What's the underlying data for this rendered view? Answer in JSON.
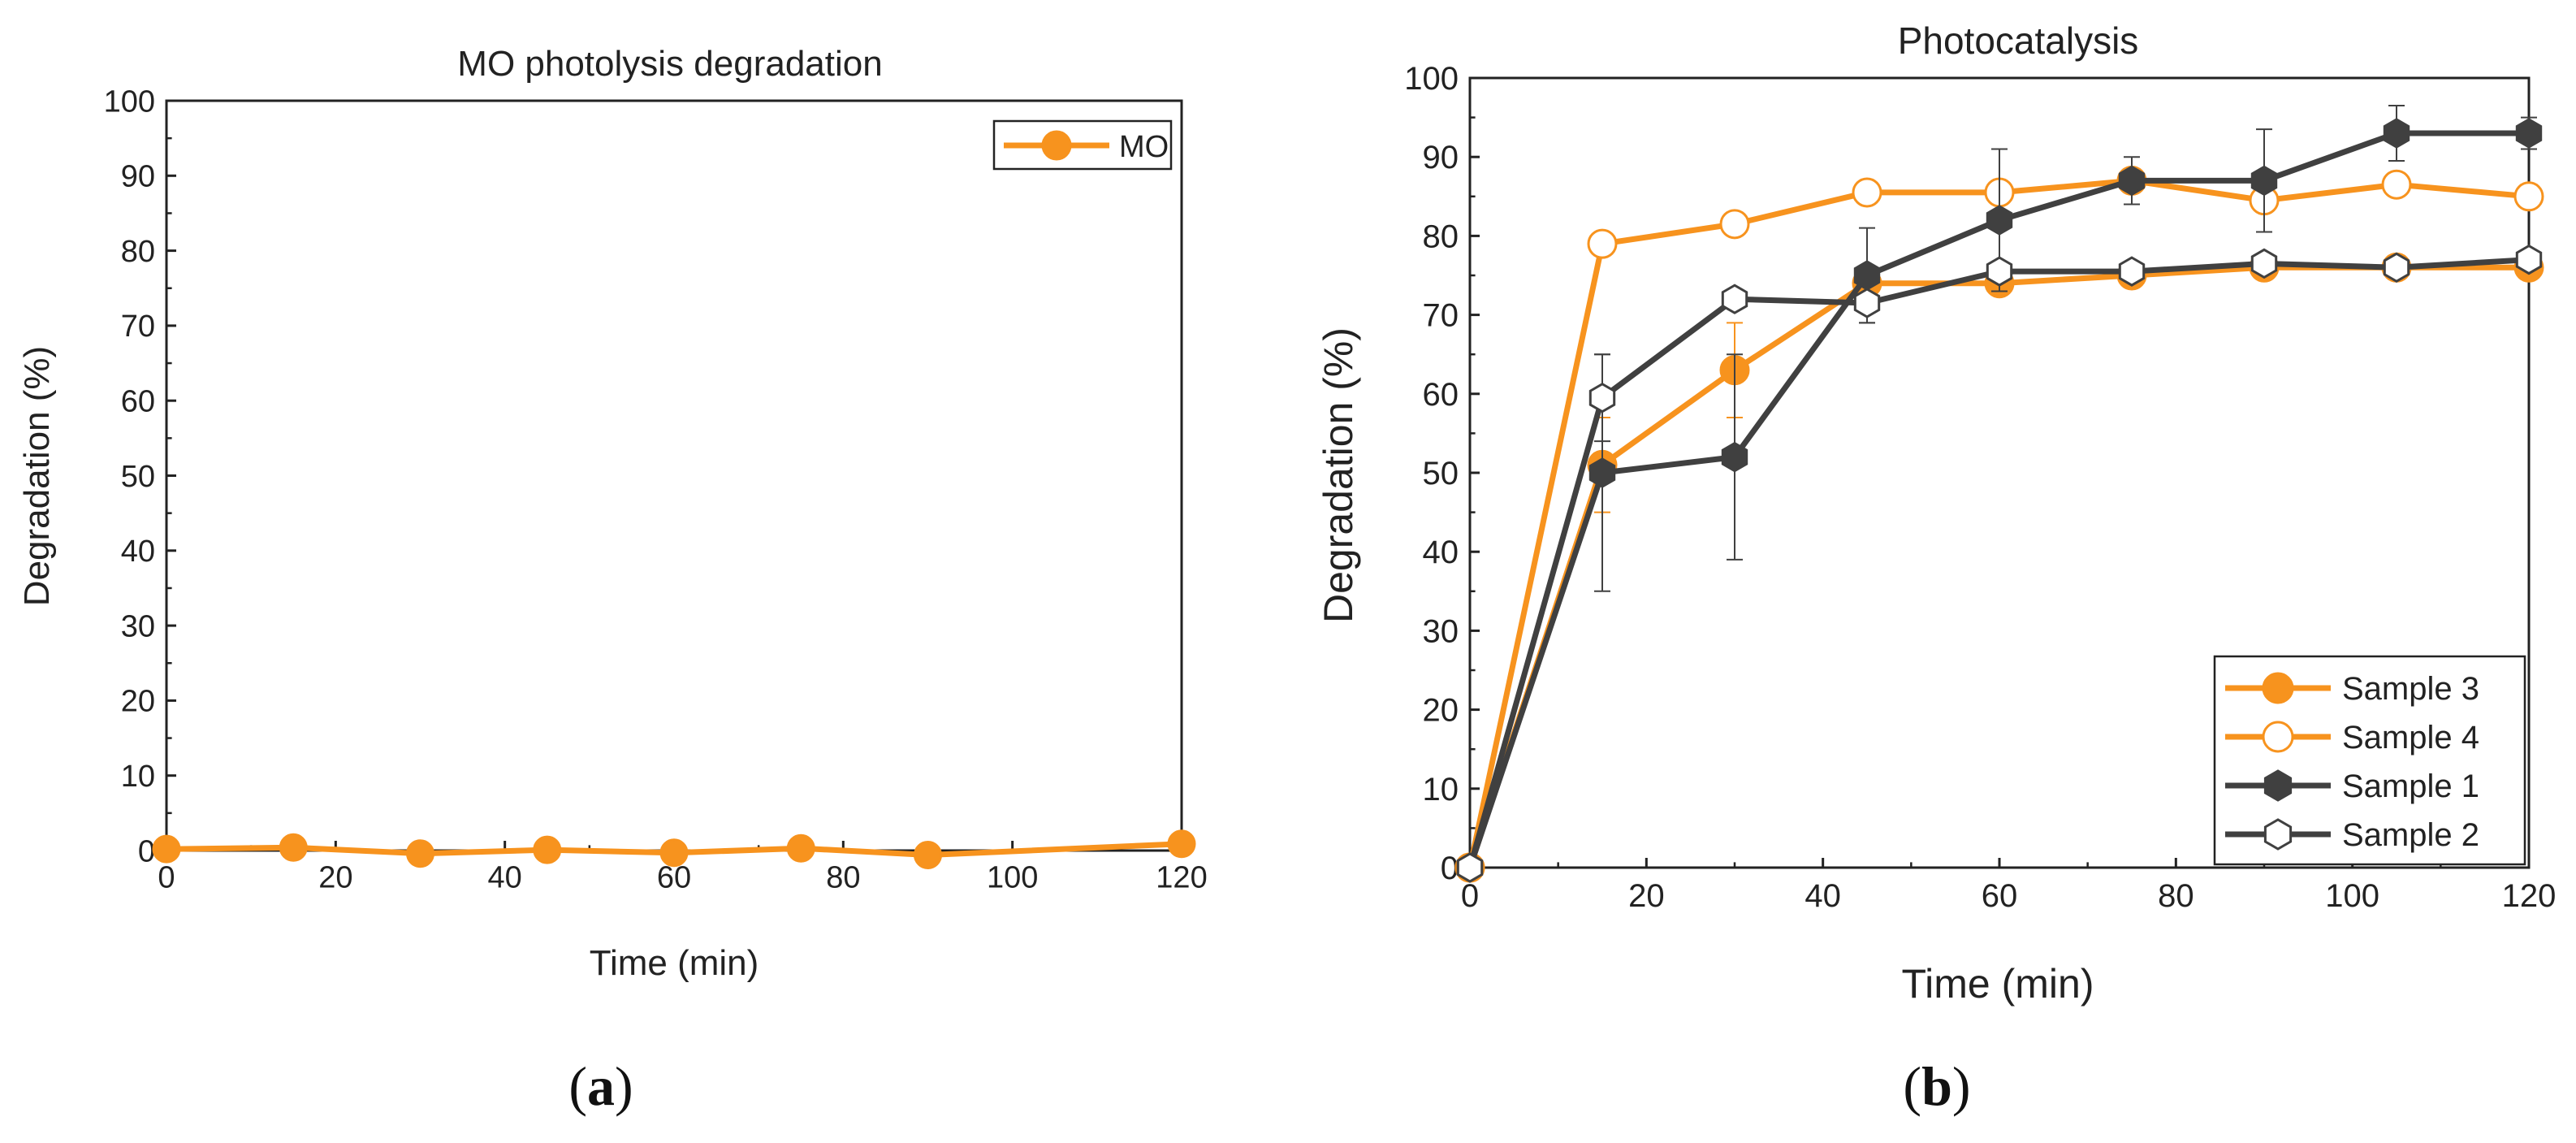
{
  "panels": [
    {
      "caption": {
        "open": "(",
        "letter": "a",
        "close": ")"
      },
      "chart_data": {
        "type": "line",
        "title": "MO photolysis degradation",
        "xlabel": "Time (min)",
        "ylabel": "Degradation (%)",
        "xlim": [
          0,
          120
        ],
        "ylim": [
          0,
          100
        ],
        "xticks": [
          0,
          20,
          40,
          60,
          80,
          100,
          120
        ],
        "yticks": [
          0,
          10,
          20,
          30,
          40,
          50,
          60,
          70,
          80,
          90,
          100
        ],
        "legend_position": "top-right",
        "series": [
          {
            "name": "MO",
            "color": "#f7931e",
            "marker": "circle",
            "filled": true,
            "x": [
              0,
              15,
              30,
              45,
              60,
              75,
              90,
              120
            ],
            "y": [
              0.2,
              0.4,
              -0.4,
              0.1,
              -0.3,
              0.3,
              -0.6,
              0.9
            ]
          }
        ]
      }
    },
    {
      "caption": {
        "open": "(",
        "letter": "b",
        "close": ")"
      },
      "chart_data": {
        "type": "line",
        "title": "Photocatalysis",
        "xlabel": "Time (min)",
        "ylabel": "Degradation (%)",
        "xlim": [
          0,
          120
        ],
        "ylim": [
          0,
          100
        ],
        "xticks": [
          0,
          20,
          40,
          60,
          80,
          100,
          120
        ],
        "yticks": [
          0,
          10,
          20,
          30,
          40,
          50,
          60,
          70,
          80,
          90,
          100
        ],
        "legend_position": "bottom-right",
        "series": [
          {
            "name": "Sample 3",
            "color": "#f7931e",
            "marker": "circle",
            "filled": true,
            "x": [
              0,
              15,
              30,
              45,
              60,
              75,
              90,
              105,
              120
            ],
            "y": [
              0,
              51,
              63,
              74,
              74,
              75,
              76,
              76,
              76
            ],
            "err": [
              0,
              6,
              6,
              1,
              1.5,
              1,
              1,
              1,
              1
            ]
          },
          {
            "name": "Sample 4",
            "color": "#f7931e",
            "marker": "circle",
            "filled": false,
            "x": [
              0,
              15,
              30,
              45,
              60,
              75,
              90,
              105,
              120
            ],
            "y": [
              0,
              79,
              81.5,
              85.5,
              85.5,
              87,
              84.5,
              86.5,
              85
            ],
            "err": [
              0,
              1,
              1,
              1,
              1.2,
              1,
              1.5,
              1,
              1
            ]
          },
          {
            "name": "Sample 1",
            "color": "#404040",
            "marker": "hexagon",
            "filled": true,
            "x": [
              0,
              15,
              30,
              45,
              60,
              75,
              90,
              105,
              120
            ],
            "y": [
              0,
              50,
              52,
              75,
              82,
              87,
              87,
              93,
              93
            ],
            "err": [
              0,
              15,
              13,
              6,
              9,
              3,
              6.5,
              3.5,
              2
            ]
          },
          {
            "name": "Sample 2",
            "color": "#404040",
            "marker": "hexagon",
            "filled": false,
            "x": [
              0,
              15,
              30,
              45,
              60,
              75,
              90,
              105,
              120
            ],
            "y": [
              0,
              59.5,
              72,
              71.5,
              75.5,
              75.5,
              76.5,
              76,
              77
            ],
            "err": [
              0,
              5.5,
              1,
              2.5,
              1,
              1,
              1,
              1,
              1
            ]
          }
        ]
      }
    }
  ]
}
